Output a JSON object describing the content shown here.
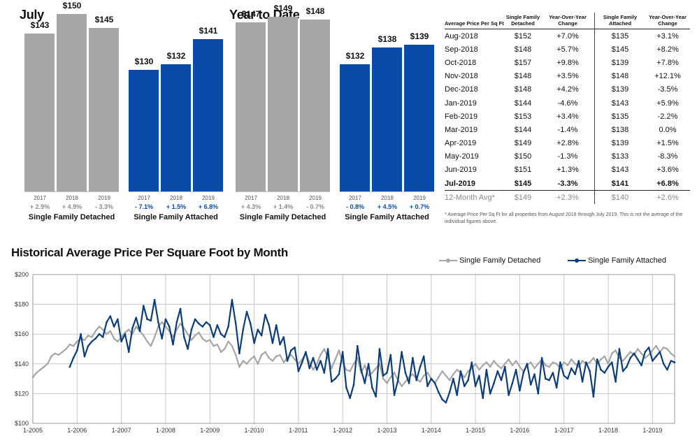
{
  "july": {
    "title": "July",
    "groups": [
      {
        "label": "Single Family Detached",
        "style": "gray",
        "bars": [
          {
            "year": "2017",
            "value": 143,
            "label": "$143",
            "change": "+ 2.9%"
          },
          {
            "year": "2018",
            "value": 150,
            "label": "$150",
            "change": "+ 4.9%"
          },
          {
            "year": "2019",
            "value": 145,
            "label": "$145",
            "change": "- 3.3%"
          }
        ]
      },
      {
        "label": "Single Family Attached",
        "style": "blue",
        "bars": [
          {
            "year": "2017",
            "value": 130,
            "label": "$130",
            "change": "- 7.1%"
          },
          {
            "year": "2018",
            "value": 132,
            "label": "$132",
            "change": "+ 1.5%"
          },
          {
            "year": "2019",
            "value": 141,
            "label": "$141",
            "change": "+ 6.8%"
          }
        ]
      }
    ]
  },
  "ytd": {
    "title": "Year to Date",
    "groups": [
      {
        "label": "Single Family Detached",
        "style": "gray",
        "bars": [
          {
            "year": "2017",
            "value": 147,
            "label": "$147",
            "change": "+ 4.3%"
          },
          {
            "year": "2018",
            "value": 149,
            "label": "$149",
            "change": "+ 1.4%"
          },
          {
            "year": "2019",
            "value": 148,
            "label": "$148",
            "change": "- 0.7%"
          }
        ]
      },
      {
        "label": "Single Family Attached",
        "style": "blue",
        "bars": [
          {
            "year": "2017",
            "value": 132,
            "label": "$132",
            "change": "- 0.8%"
          },
          {
            "year": "2018",
            "value": 138,
            "label": "$138",
            "change": "+ 4.5%"
          },
          {
            "year": "2019",
            "value": 139,
            "label": "$139",
            "change": "+ 0.7%"
          }
        ]
      }
    ]
  },
  "table": {
    "headers": [
      "Average Price Per Sq Ft",
      "Single Family Detached",
      "Year-Over-Year Change",
      "Single Family Attached",
      "Year-Over-Year Change"
    ],
    "rows": [
      [
        "Aug-2018",
        "$152",
        "+7.0%",
        "$135",
        "+3.1%"
      ],
      [
        "Sep-2018",
        "$148",
        "+5.7%",
        "$145",
        "+8.2%"
      ],
      [
        "Oct-2018",
        "$157",
        "+9.8%",
        "$139",
        "+7.8%"
      ],
      [
        "Nov-2018",
        "$148",
        "+3.5%",
        "$148",
        "+12.1%"
      ],
      [
        "Dec-2018",
        "$148",
        "+4.2%",
        "$139",
        "-3.5%"
      ],
      [
        "Jan-2019",
        "$144",
        "-4.6%",
        "$143",
        "+5.9%"
      ],
      [
        "Feb-2019",
        "$153",
        "+3.4%",
        "$135",
        "-2.2%"
      ],
      [
        "Mar-2019",
        "$144",
        "-1.4%",
        "$138",
        "0.0%"
      ],
      [
        "Apr-2019",
        "$149",
        "+2.8%",
        "$139",
        "+1.5%"
      ],
      [
        "May-2019",
        "$150",
        "-1.3%",
        "$133",
        "-8.3%"
      ],
      [
        "Jun-2019",
        "$151",
        "+1.3%",
        "$143",
        "+3.6%"
      ],
      [
        "Jul-2019",
        "$145",
        "-3.3%",
        "$141",
        "+6.8%"
      ]
    ],
    "avg_row": [
      "12-Month Avg*",
      "$149",
      "+2.3%",
      "$140",
      "+2.6%"
    ],
    "footnote": "* Average Price Per Sq Ft for all properties from August 2018 through July 2019. This is not the average of the individual figures above."
  },
  "history": {
    "title": "Historical Average Price Per Square Foot by Month",
    "legend": [
      "Single Family Detached",
      "Single Family Attached"
    ]
  },
  "colors": {
    "gray": "#a6a6a6",
    "blue": "#0a4aa8",
    "blue_line": "#0b3d7a"
  },
  "chart_data": [
    {
      "type": "bar",
      "title": "July",
      "categories": [
        "2017",
        "2018",
        "2019"
      ],
      "series": [
        {
          "name": "Single Family Detached",
          "values": [
            143,
            150,
            145
          ]
        },
        {
          "name": "Single Family Attached",
          "values": [
            130,
            132,
            141
          ]
        }
      ]
    },
    {
      "type": "bar",
      "title": "Year to Date",
      "categories": [
        "2017",
        "2018",
        "2019"
      ],
      "series": [
        {
          "name": "Single Family Detached",
          "values": [
            147,
            149,
            148
          ]
        },
        {
          "name": "Single Family Attached",
          "values": [
            132,
            138,
            139
          ]
        }
      ]
    },
    {
      "type": "line",
      "title": "Historical Average Price Per Square Foot by Month",
      "x_start": "1-2005",
      "x_ticks": [
        "1-2005",
        "1-2006",
        "1-2007",
        "1-2008",
        "1-2009",
        "1-2010",
        "1-2011",
        "1-2012",
        "1-2013",
        "1-2014",
        "1-2015",
        "1-2016",
        "1-2017",
        "1-2018",
        "1-2019"
      ],
      "y_ticks": [
        "$100",
        "$120",
        "$140",
        "$160",
        "$180",
        "$200"
      ],
      "ylim": [
        100,
        200
      ],
      "xlim_months": [
        0,
        174
      ],
      "series": [
        {
          "name": "Single Family Detached",
          "values": [
            131,
            134,
            136,
            138,
            140,
            145,
            147,
            146,
            148,
            150,
            153,
            152,
            155,
            157,
            156,
            159,
            158,
            162,
            165,
            163,
            160,
            162,
            157,
            155,
            158,
            161,
            163,
            160,
            165,
            162,
            159,
            155,
            152,
            158,
            165,
            168,
            165,
            162,
            158,
            163,
            167,
            164,
            160,
            156,
            159,
            161,
            157,
            155,
            156,
            152,
            153,
            148,
            150,
            155,
            152,
            146,
            138,
            142,
            140,
            143,
            145,
            140,
            146,
            148,
            144,
            142,
            145,
            146,
            141,
            144,
            146,
            143,
            140,
            143,
            147,
            141,
            136,
            140,
            146,
            150,
            144,
            137,
            143,
            149,
            141,
            136,
            135,
            140,
            144,
            134,
            139,
            132,
            134,
            137,
            140,
            130,
            127,
            131,
            134,
            129,
            125,
            128,
            131,
            133,
            130,
            128,
            132,
            134,
            130,
            127,
            131,
            135,
            132,
            129,
            133,
            136,
            134,
            131,
            135,
            137,
            140,
            136,
            139,
            141,
            138,
            142,
            139,
            137,
            140,
            143,
            139,
            142,
            138,
            135,
            139,
            141,
            137,
            140,
            143,
            139,
            138,
            141,
            140,
            137,
            141,
            139,
            143,
            140,
            138,
            142,
            140,
            141,
            144,
            140,
            143,
            145,
            140,
            147,
            149,
            144,
            142,
            145,
            148,
            146,
            150,
            147,
            144,
            146,
            149,
            152,
            148,
            151,
            150,
            147,
            145
          ]
        },
        {
          "name": "Single Family Attached",
          "values": [
            null,
            null,
            null,
            null,
            null,
            null,
            null,
            null,
            null,
            null,
            138,
            144,
            149,
            160,
            145,
            152,
            155,
            157,
            160,
            158,
            168,
            172,
            165,
            170,
            155,
            160,
            148,
            164,
            171,
            162,
            179,
            170,
            169,
            183,
            168,
            157,
            170,
            165,
            153,
            168,
            177,
            158,
            150,
            163,
            170,
            167,
            165,
            168,
            166,
            158,
            166,
            160,
            158,
            165,
            183,
            167,
            147,
            163,
            175,
            167,
            154,
            163,
            159,
            173,
            166,
            154,
            166,
            153,
            158,
            142,
            149,
            151,
            135,
            141,
            148,
            137,
            144,
            136,
            142,
            134,
            150,
            128,
            130,
            133,
            148,
            124,
            117,
            126,
            152,
            136,
            127,
            140,
            124,
            118,
            150,
            132,
            134,
            146,
            119,
            129,
            148,
            134,
            127,
            144,
            129,
            138,
            145,
            125,
            130,
            127,
            121,
            116,
            114,
            121,
            130,
            119,
            135,
            125,
            129,
            141,
            125,
            132,
            117,
            136,
            120,
            127,
            135,
            129,
            138,
            119,
            127,
            136,
            122,
            134,
            140,
            126,
            133,
            120,
            144,
            130,
            129,
            134,
            124,
            141,
            132,
            130,
            137,
            133,
            142,
            128,
            141,
            135,
            118,
            143,
            136,
            134,
            138,
            141,
            128,
            150,
            135,
            138,
            144,
            147,
            143,
            139,
            148,
            151,
            142,
            145,
            148,
            140,
            136,
            142,
            141
          ]
        }
      ]
    }
  ]
}
